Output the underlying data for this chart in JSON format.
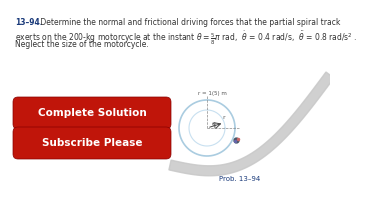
{
  "title_bold": "13–94.",
  "title_text": " Determine the normal and frictional driving forces that the partial spiral track",
  "line2": "exerts on the 200-kg motorcycle at the instant $\\theta = \\frac{5}{8}\\pi$ rad,  $\\dot{\\theta}$ = 0.4 rad/s,  $\\ddot{\\theta}$ = 0.8 rad/s$^2$ .",
  "line3": "Neglect the size of the motorcycle.",
  "btn1_text": "Complete Solution",
  "btn2_text": "Subscribe Please",
  "prob_label": "Prob. 13–94",
  "bg_color": "#ffffff",
  "btn_color": "#c0150a",
  "btn_text_color": "#ffffff",
  "title_color": "#1a3a7a",
  "body_color": "#333333",
  "prob_color": "#1a3a7a",
  "track_color": "#c8c8c8",
  "circle_color": "#aacce0",
  "circle_inner": "#c8e0f0"
}
